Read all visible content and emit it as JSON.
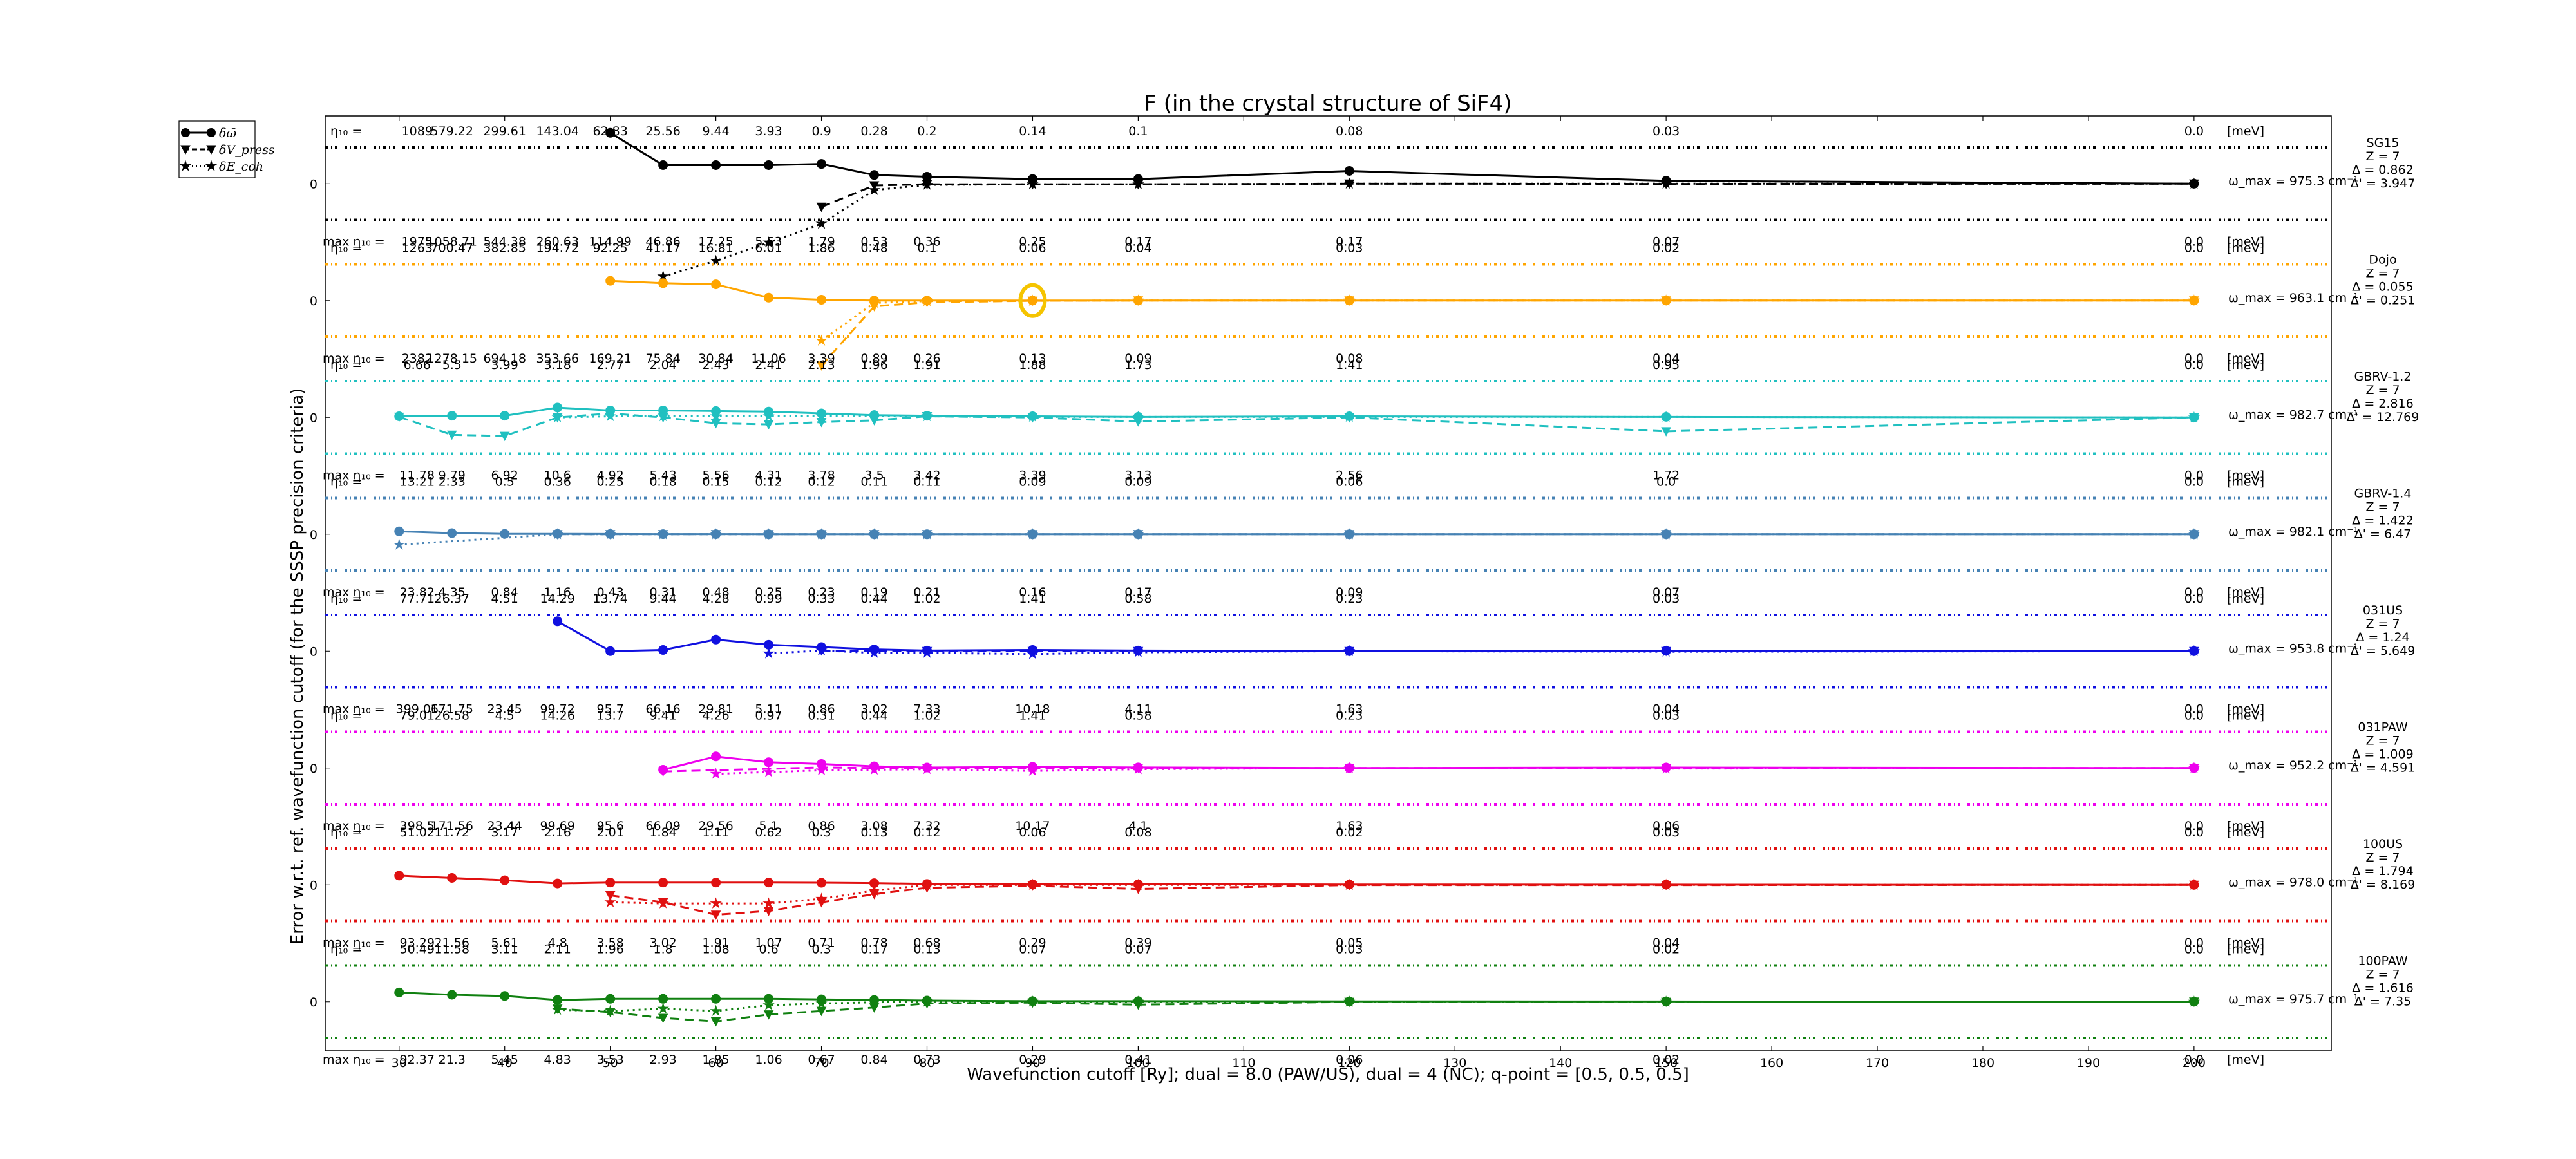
{
  "chart_data": {
    "type": "line",
    "title": "F (in the crystal structure of SiF4)",
    "xlabel": "Wavefunction cutoff [Ry]; dual = 8.0 (PAW/US), dual = 4 (NC); q-point = [0.5, 0.5, 0.5]",
    "ylabel": "Error w.r.t. ref. wavefunction cutoff (for the SSSP precision criteria)",
    "xlim": [
      23,
      213
    ],
    "x_ticks": [
      30,
      40,
      50,
      60,
      70,
      80,
      90,
      100,
      110,
      120,
      130,
      140,
      150,
      160,
      170,
      180,
      190,
      200
    ],
    "legend": {
      "placement": "outside-top-left",
      "entries": [
        "δω̄",
        "δV_press",
        "δE_coh"
      ]
    },
    "eta_prefix": "η₁₀ =",
    "max_prefix": "max η₁₀ =",
    "unit_label": "[meV]",
    "zero_tick": "0",
    "cutoffs": [
      30,
      35,
      40,
      45,
      50,
      55,
      60,
      65,
      70,
      75,
      80,
      90,
      100,
      120,
      150,
      200
    ],
    "series": [
      {
        "name": "SG15",
        "color": "#000000",
        "right_labels": [
          "SG15",
          "Z = 7",
          "Δ = 0.862",
          "Δ' = 3.947"
        ],
        "omega": "ω_max = 975.3 cm⁻¹",
        "eta": [
          "1089",
          "579.22",
          "299.61",
          "143.04",
          "62.83",
          "25.56",
          "9.44",
          "3.93",
          "0.9",
          "0.28",
          "0.2",
          "0.14",
          "0.1",
          "0.08",
          "0.03",
          "0.0"
        ],
        "max_eta": [
          "1975",
          "1058.71",
          "544.38",
          "260.63",
          "114.99",
          "46.86",
          "17.25",
          "5.53",
          "1.79",
          "0.53",
          "0.36",
          "0.25",
          "0.17",
          "0.17",
          "0.07",
          "0.0"
        ],
        "delta_omega": [
          null,
          null,
          null,
          null,
          5.0,
          1.6,
          1.6,
          1.6,
          1.7,
          0.75,
          0.6,
          0.4,
          0.4,
          1.1,
          0.25,
          0.0
        ],
        "delta_v_press": [
          null,
          null,
          null,
          null,
          null,
          null,
          null,
          null,
          -2.0,
          -0.15,
          -0.05,
          -0.05,
          -0.05,
          0.0,
          -0.02,
          0.0
        ],
        "delta_e_coh": [
          null,
          null,
          null,
          null,
          null,
          -20,
          -12,
          -6.5,
          -3.5,
          -0.55,
          -0.1,
          -0.05,
          -0.05,
          0.0,
          0.0,
          0.0
        ]
      },
      {
        "name": "Dojo",
        "color": "#ffa500",
        "right_labels": [
          "Dojo",
          "Z = 7",
          "Δ = 0.055",
          "Δ' = 0.251"
        ],
        "omega": "ω_max = 963.1 cm⁻¹",
        "eta": [
          "1263",
          "700.47",
          "382.85",
          "194.72",
          "92.25",
          "41.17",
          "16.81",
          "6.01",
          "1.86",
          "0.48",
          "0.1",
          "0.06",
          "0.04",
          "0.03",
          "0.02",
          "0.0"
        ],
        "max_eta": [
          "2382",
          "1278.15",
          "694.18",
          "353.66",
          "169.21",
          "75.84",
          "30.84",
          "11.06",
          "3.39",
          "0.89",
          "0.26",
          "0.13",
          "0.09",
          "0.08",
          "0.04",
          "0.0"
        ],
        "delta_omega": [
          null,
          null,
          null,
          null,
          1.7,
          1.5,
          1.4,
          0.25,
          0.07,
          0.0,
          0.0,
          0.0,
          0.0,
          0.0,
          0.0,
          0.0
        ],
        "delta_v_press": [
          null,
          null,
          null,
          null,
          null,
          null,
          null,
          null,
          -8,
          -0.5,
          -0.15,
          -0.02,
          0.0,
          0.0,
          0.0,
          0.0
        ],
        "delta_e_coh": [
          null,
          null,
          null,
          null,
          null,
          null,
          null,
          null,
          -3.5,
          -0.2,
          -0.05,
          -0.02,
          0.0,
          0.0,
          0.0,
          0.0
        ]
      },
      {
        "name": "GBRV-1.2",
        "color": "#20c0c0",
        "right_labels": [
          "GBRV-1.2",
          "Z = 7",
          "Δ = 2.816",
          "Δ' = 12.769"
        ],
        "omega": "ω_max = 982.7 cm⁻¹",
        "eta": [
          "6.66",
          "5.5",
          "3.99",
          "3.18",
          "2.77",
          "2.04",
          "2.43",
          "2.41",
          "2.13",
          "1.96",
          "1.91",
          "1.88",
          "1.73",
          "1.41",
          "0.95",
          "0.0"
        ],
        "max_eta": [
          "11.78",
          "9.79",
          "6.92",
          "10.6",
          "4.92",
          "5.43",
          "5.56",
          "4.31",
          "3.78",
          "3.5",
          "3.42",
          "3.39",
          "3.13",
          "2.56",
          "1.72",
          "0.0"
        ],
        "delta_omega": [
          0.1,
          0.15,
          0.15,
          0.85,
          0.6,
          0.6,
          0.55,
          0.5,
          0.35,
          0.2,
          0.15,
          0.1,
          0.05,
          0.1,
          0.05,
          0.0
        ],
        "delta_v_press": [
          0.05,
          -1.5,
          -1.6,
          0.0,
          0.35,
          0.0,
          -0.5,
          -0.6,
          -0.4,
          -0.25,
          0.1,
          0.0,
          -0.35,
          0.0,
          -1.2,
          0.0
        ],
        "delta_e_coh": [
          null,
          null,
          null,
          0.0,
          0.1,
          0.1,
          0.1,
          0.1,
          0.1,
          0.1,
          0.1,
          0.05,
          0.05,
          0.05,
          0.05,
          0.0
        ]
      },
      {
        "name": "GBRV-1.4",
        "color": "#4682b4",
        "right_labels": [
          "GBRV-1.4",
          "Z = 7",
          "Δ = 1.422",
          "Δ' = 6.47"
        ],
        "omega": "ω_max = 982.1 cm⁻¹",
        "eta": [
          "13.21",
          "2.33",
          "0.5",
          "0.36",
          "0.25",
          "0.18",
          "0.15",
          "0.12",
          "0.12",
          "0.11",
          "0.11",
          "0.09",
          "0.09",
          "0.06",
          "0.0",
          "0.0"
        ],
        "max_eta": [
          "23.82",
          "4.35",
          "0.84",
          "1.16",
          "0.43",
          "0.31",
          "0.48",
          "0.25",
          "0.23",
          "0.19",
          "0.21",
          "0.16",
          "0.17",
          "0.09",
          "0.07",
          "0.0"
        ],
        "delta_omega": [
          0.25,
          0.1,
          0.03,
          0.03,
          0.02,
          0.01,
          0.01,
          0.0,
          0.0,
          0.0,
          0.0,
          0.0,
          0.0,
          0.0,
          0.0,
          0.0
        ],
        "delta_v_press": [
          null,
          null,
          null,
          0.0,
          0.0,
          0.0,
          0.0,
          0.0,
          0.0,
          0.0,
          0.0,
          0.0,
          0.0,
          0.0,
          0.0,
          0.0
        ],
        "delta_e_coh": [
          -0.9,
          null,
          null,
          0.0,
          0.0,
          0.0,
          0.0,
          0.0,
          0.0,
          0.0,
          0.0,
          0.0,
          0.0,
          0.0,
          0.0,
          0.0
        ]
      },
      {
        "name": "031US",
        "color": "#1010e0",
        "right_labels": [
          "031US",
          "Z = 7",
          "Δ = 1.24",
          "Δ' = 5.649"
        ],
        "omega": "ω_max = 953.8 cm⁻¹",
        "eta": [
          "77.71",
          "26.37",
          "4.51",
          "14.29",
          "13.74",
          "9.44",
          "4.28",
          "0.99",
          "0.33",
          "0.44",
          "1.02",
          "1.41",
          "0.58",
          "0.23",
          "0.03",
          "0.0"
        ],
        "max_eta": [
          "399.06",
          "171.75",
          "23.45",
          "99.72",
          "95.7",
          "66.16",
          "29.81",
          "5.11",
          "0.86",
          "3.02",
          "7.33",
          "10.18",
          "4.11",
          "1.63",
          "0.04",
          "0.0"
        ],
        "delta_omega": [
          null,
          null,
          null,
          2.5,
          0.0,
          0.1,
          1.0,
          0.55,
          0.35,
          0.15,
          0.05,
          0.1,
          0.05,
          0.0,
          0.03,
          0.0
        ],
        "delta_v_press": [
          null,
          null,
          null,
          null,
          null,
          null,
          null,
          null,
          0.05,
          0.0,
          0.0,
          0.0,
          0.0,
          0.0,
          0.0,
          0.0
        ],
        "delta_e_coh": [
          null,
          null,
          null,
          null,
          null,
          null,
          null,
          -0.2,
          0.05,
          -0.15,
          -0.15,
          -0.25,
          -0.1,
          0.0,
          -0.05,
          0.0
        ]
      },
      {
        "name": "031PAW",
        "color": "#ee00ee",
        "right_labels": [
          "031PAW",
          "Z = 7",
          "Δ = 1.009",
          "Δ' = 4.591"
        ],
        "omega": "ω_max = 952.2 cm⁻¹",
        "eta": [
          "79.01",
          "26.58",
          "4.5",
          "14.26",
          "13.7",
          "9.41",
          "4.26",
          "0.97",
          "0.31",
          "0.44",
          "1.02",
          "1.41",
          "0.58",
          "0.23",
          "0.03",
          "0.0"
        ],
        "max_eta": [
          "398.5",
          "171.56",
          "23.44",
          "99.69",
          "95.6",
          "66.09",
          "29.56",
          "5.1",
          "0.86",
          "3.08",
          "7.32",
          "10.17",
          "4.1",
          "1.63",
          "0.06",
          "0.0"
        ],
        "delta_omega": [
          null,
          null,
          null,
          null,
          null,
          -0.15,
          1.0,
          0.5,
          0.35,
          0.15,
          0.04,
          0.1,
          0.05,
          0.0,
          0.04,
          0.0
        ],
        "delta_v_press": [
          null,
          null,
          null,
          null,
          null,
          -0.3,
          null,
          null,
          0.05,
          0.0,
          0.0,
          0.0,
          0.0,
          0.0,
          0.0,
          0.0
        ],
        "delta_e_coh": [
          null,
          null,
          null,
          null,
          null,
          null,
          -0.5,
          -0.35,
          -0.2,
          -0.15,
          -0.1,
          -0.25,
          -0.1,
          0.0,
          -0.05,
          0.0
        ]
      },
      {
        "name": "100US",
        "color": "#e01010",
        "right_labels": [
          "100US",
          "Z = 7",
          "Δ = 1.794",
          "Δ' = 8.169"
        ],
        "omega": "ω_max = 978.0 cm⁻¹",
        "eta": [
          "51.02",
          "11.72",
          "3.17",
          "2.16",
          "2.01",
          "1.84",
          "1.11",
          "0.62",
          "0.3",
          "0.13",
          "0.12",
          "0.06",
          "0.08",
          "0.02",
          "0.03",
          "0.0"
        ],
        "max_eta": [
          "93.29",
          "21.56",
          "5.61",
          "4.8",
          "3.58",
          "3.02",
          "1.91",
          "1.07",
          "0.71",
          "0.78",
          "0.68",
          "0.29",
          "0.39",
          "0.05",
          "0.04",
          "0.0"
        ],
        "delta_omega": [
          0.8,
          0.6,
          0.4,
          0.12,
          0.2,
          0.2,
          0.2,
          0.2,
          0.18,
          0.15,
          0.08,
          0.05,
          0.05,
          0.03,
          0.02,
          0.0
        ],
        "delta_v_press": [
          null,
          null,
          null,
          null,
          -0.9,
          -1.5,
          -2.5,
          -2.2,
          -1.5,
          -0.8,
          -0.25,
          -0.08,
          -0.35,
          -0.02,
          -0.02,
          0.0
        ],
        "delta_e_coh": [
          null,
          null,
          null,
          null,
          -1.5,
          -1.6,
          -1.6,
          -1.6,
          -1.2,
          -0.5,
          0.0,
          0.0,
          0.0,
          0.0,
          0.0,
          0.0
        ]
      },
      {
        "name": "100PAW",
        "color": "#108010",
        "right_labels": [
          "100PAW",
          "Z = 7",
          "Δ = 1.616",
          "Δ' = 7.35"
        ],
        "omega": "ω_max = 975.7 cm⁻¹",
        "eta": [
          "50.49",
          "11.58",
          "3.11",
          "2.11",
          "1.96",
          "1.8",
          "1.08",
          "0.6",
          "0.3",
          "0.17",
          "0.13",
          "0.07",
          "0.07",
          "0.03",
          "0.02",
          "0.0"
        ],
        "max_eta": [
          "92.37",
          "21.3",
          "5.45",
          "4.83",
          "3.53",
          "2.93",
          "1.85",
          "1.06",
          "0.67",
          "0.84",
          "0.73",
          "0.29",
          "0.41",
          "0.06",
          "0.02",
          "0.0"
        ],
        "delta_omega": [
          0.8,
          0.6,
          0.5,
          0.15,
          0.25,
          0.25,
          0.25,
          0.25,
          0.2,
          0.15,
          0.1,
          0.05,
          0.05,
          0.03,
          0.02,
          0.0
        ],
        "delta_v_press": [
          null,
          null,
          null,
          -0.6,
          -0.9,
          -1.4,
          -1.7,
          -1.1,
          -0.8,
          -0.5,
          -0.15,
          -0.08,
          -0.25,
          -0.02,
          -0.02,
          0.0
        ],
        "delta_e_coh": [
          null,
          null,
          null,
          -0.7,
          -0.8,
          -0.6,
          -0.8,
          -0.3,
          -0.15,
          -0.05,
          0.0,
          0.0,
          0.0,
          0.0,
          0.0,
          0.0
        ]
      }
    ]
  }
}
